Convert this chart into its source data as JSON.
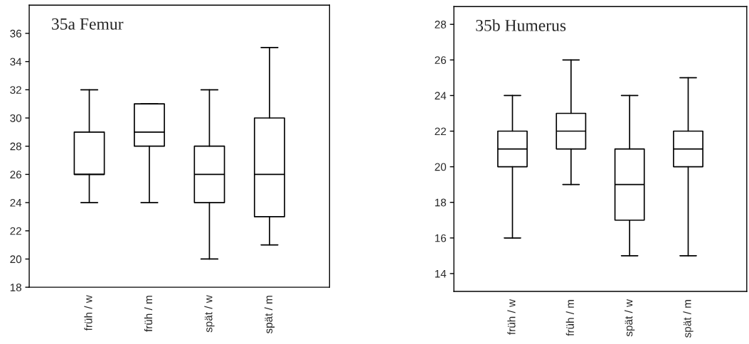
{
  "chart_data": [
    {
      "type": "box",
      "title": "35a Femur",
      "categories": [
        "früh / w",
        "früh / m",
        "spät / w",
        "spät / m"
      ],
      "boxes": [
        {
          "low": 24,
          "q1": 26,
          "median": 26,
          "q3": 29,
          "high": 32
        },
        {
          "low": 24,
          "q1": 28,
          "median": 29,
          "q3": 31,
          "high": 31
        },
        {
          "low": 20,
          "q1": 24,
          "median": 26,
          "q3": 28,
          "high": 32
        },
        {
          "low": 21,
          "q1": 23,
          "median": 26,
          "q3": 30,
          "high": 35
        }
      ],
      "ylim": [
        18,
        38
      ],
      "yticks": [
        18,
        20,
        22,
        24,
        26,
        28,
        30,
        32,
        34,
        36
      ],
      "grid": false
    },
    {
      "type": "box",
      "title": "35b Humerus",
      "categories": [
        "früh / w",
        "früh / m",
        "spät / w",
        "spät / m"
      ],
      "boxes": [
        {
          "low": 16,
          "q1": 20,
          "median": 21,
          "q3": 22,
          "high": 24
        },
        {
          "low": 19,
          "q1": 21,
          "median": 22,
          "q3": 23,
          "high": 26
        },
        {
          "low": 15,
          "q1": 17,
          "median": 19,
          "q3": 21,
          "high": 24
        },
        {
          "low": 15,
          "q1": 20,
          "median": 21,
          "q3": 22,
          "high": 25
        }
      ],
      "ylim": [
        13,
        29
      ],
      "yticks": [
        14,
        16,
        18,
        20,
        22,
        24,
        26,
        28
      ],
      "grid": false
    }
  ]
}
